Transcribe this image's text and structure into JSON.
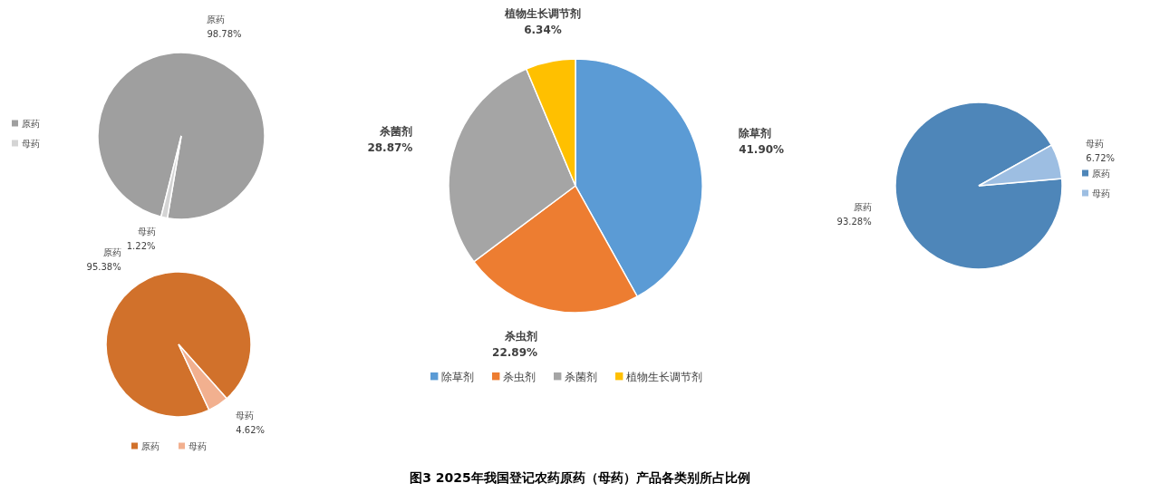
{
  "chart_data": [
    {
      "type": "pie",
      "title": "图3 2025年我国登记农药原药（母药）产品各类别所占比例",
      "categories": [
        "除草剂",
        "杀虫剂",
        "杀菌剂",
        "植物生长调节剂"
      ],
      "values": [
        41.9,
        22.89,
        28.87,
        6.34
      ],
      "value_labels": [
        "41.90%",
        "22.89%",
        "28.87%",
        "6.34%"
      ],
      "colors": [
        "#5b9bd5",
        "#ed7d31",
        "#a5a5a5",
        "#ffc000"
      ],
      "legend": "bottom"
    },
    {
      "type": "pie",
      "categories": [
        "原药",
        "母药"
      ],
      "values": [
        98.78,
        1.22
      ],
      "value_labels": [
        "98.78%",
        "1.22%"
      ],
      "colors": [
        "#9f9f9f",
        "#d4d4d4"
      ],
      "legend": "left"
    },
    {
      "type": "pie",
      "categories": [
        "原药",
        "母药"
      ],
      "values": [
        93.28,
        6.72
      ],
      "value_labels": [
        "93.28%",
        "6.72%"
      ],
      "colors": [
        "#4e86b9",
        "#9dbee2"
      ],
      "legend": "right"
    },
    {
      "type": "pie",
      "categories": [
        "原药",
        "母药"
      ],
      "values": [
        95.38,
        4.62
      ],
      "value_labels": [
        "95.38%",
        "4.62%"
      ],
      "colors": [
        "#d1712b",
        "#f2b08f"
      ],
      "legend": "bottom"
    }
  ]
}
